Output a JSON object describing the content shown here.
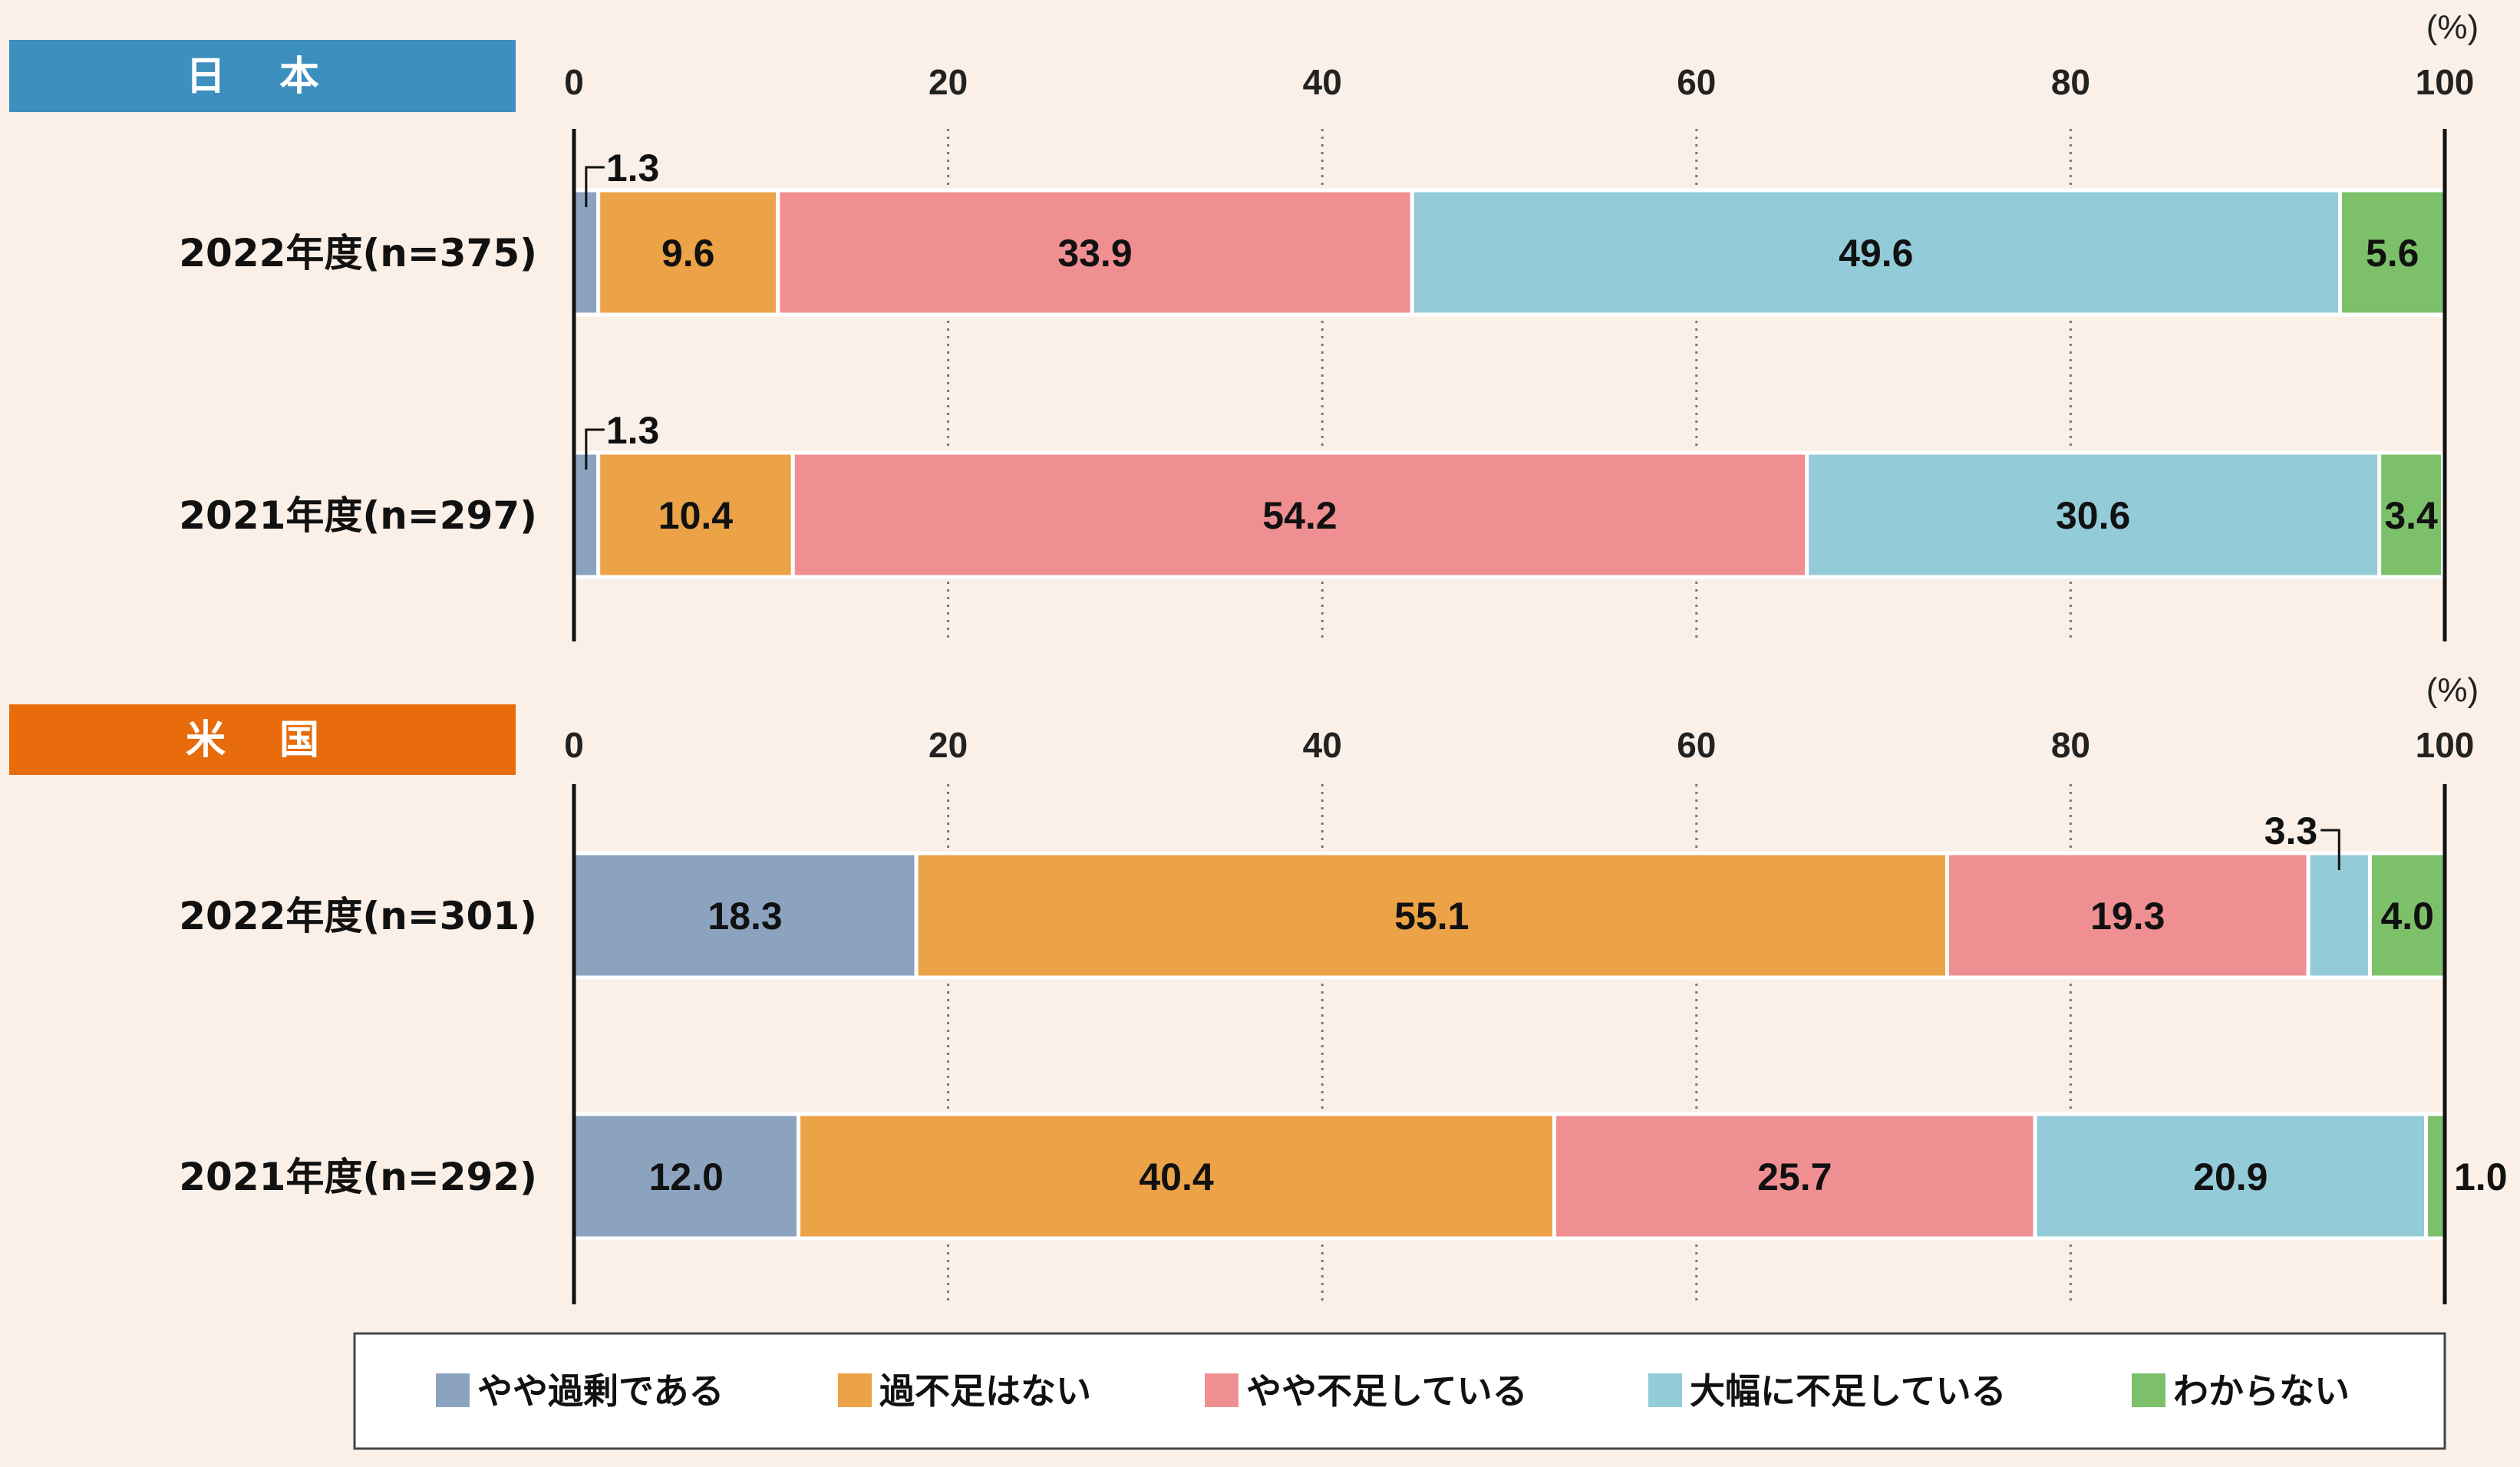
{
  "chart_data": [
    {
      "type": "bar",
      "stacked": true,
      "orientation": "horizontal",
      "region": "日 本",
      "region_color": "#3d8fbe",
      "unit": "(%)",
      "xlim": [
        0,
        100
      ],
      "ticks": [
        "0",
        "20",
        "40",
        "60",
        "80",
        "100"
      ],
      "categories": [
        "2022年度(n=375)",
        "2021年度(n=297)"
      ],
      "series": [
        {
          "name": "やや過剰である",
          "values": [
            1.3,
            1.3
          ]
        },
        {
          "name": "過不足はない",
          "values": [
            9.6,
            10.4
          ]
        },
        {
          "name": "やや不足している",
          "values": [
            33.9,
            54.2
          ]
        },
        {
          "name": "大幅に不足している",
          "values": [
            49.6,
            30.6
          ]
        },
        {
          "name": "わからない",
          "values": [
            5.6,
            3.4
          ]
        }
      ],
      "labels": [
        [
          "1.3",
          "9.6",
          "33.9",
          "49.6",
          "5.6"
        ],
        [
          "1.3",
          "10.4",
          "54.2",
          "30.6",
          "3.4"
        ]
      ]
    },
    {
      "type": "bar",
      "stacked": true,
      "orientation": "horizontal",
      "region": "米 国",
      "region_color": "#e86c0c",
      "unit": "(%)",
      "xlim": [
        0,
        100
      ],
      "ticks": [
        "0",
        "20",
        "40",
        "60",
        "80",
        "100"
      ],
      "categories": [
        "2022年度(n=301)",
        "2021年度(n=292)"
      ],
      "series": [
        {
          "name": "やや過剰である",
          "values": [
            18.3,
            12.0
          ]
        },
        {
          "name": "過不足はない",
          "values": [
            55.1,
            40.4
          ]
        },
        {
          "name": "やや不足している",
          "values": [
            19.3,
            25.7
          ]
        },
        {
          "name": "大幅に不足している",
          "values": [
            3.3,
            20.9
          ]
        },
        {
          "name": "わからない",
          "values": [
            4.0,
            1.0
          ]
        }
      ],
      "labels": [
        [
          "18.3",
          "55.1",
          "19.3",
          "3.3",
          "4.0"
        ],
        [
          "12.0",
          "40.4",
          "25.7",
          "20.9",
          "1.0"
        ]
      ]
    }
  ],
  "legend": [
    {
      "name": "やや過剰である",
      "color": "#8ca3c0"
    },
    {
      "name": "過不足はない",
      "color": "#eca247"
    },
    {
      "name": "やや不足している",
      "color": "#f08f92"
    },
    {
      "name": "大幅に不足している",
      "color": "#94cbd9"
    },
    {
      "name": "わからない",
      "color": "#7dc06a"
    }
  ]
}
